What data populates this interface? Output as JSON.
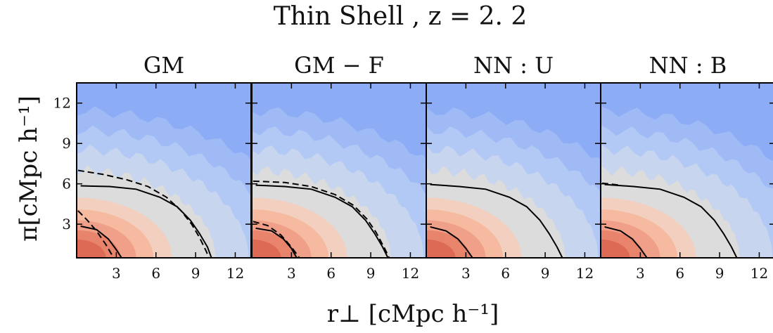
{
  "chart_data": {
    "type": "contour",
    "title": "Thin Shell ,  z = 2. 2",
    "xlabel": "r⊥ [cMpc h⁻¹]",
    "ylabel": "π[cMpc h⁻¹]",
    "xlim": [
      0,
      13.2
    ],
    "ylim": [
      0.5,
      13.5
    ],
    "xticks": [
      3,
      6,
      9,
      12
    ],
    "yticks": [
      3,
      6,
      9,
      12
    ],
    "fill_levels": [
      {
        "r": 2.2,
        "color": "#dc6a54"
      },
      {
        "r": 3.3,
        "color": "#e8846b"
      },
      {
        "r": 4.5,
        "color": "#f0a088"
      },
      {
        "r": 5.8,
        "color": "#f5baa0"
      },
      {
        "r": 7.2,
        "color": "#f2cfbf"
      },
      {
        "r": 10.5,
        "color": "#dcdcdc"
      },
      {
        "r": 13.0,
        "color": "#c7d6ee"
      },
      {
        "r": 15.3,
        "color": "#b3c9f5"
      },
      {
        "r": 17.6,
        "color": "#9fbaf5"
      },
      {
        "r": 20.0,
        "color": "#8cadf5"
      }
    ],
    "panels": [
      {
        "title": "GM",
        "solid_contours": [
          [
            [
              0.3,
              2.85
            ],
            [
              1.5,
              2.6
            ],
            [
              2.4,
              1.9
            ],
            [
              3.0,
              1.1
            ],
            [
              3.4,
              0.5
            ]
          ],
          [
            [
              0.3,
              5.85
            ],
            [
              2.5,
              5.8
            ],
            [
              4.5,
              5.6
            ],
            [
              6.3,
              5.0
            ],
            [
              7.6,
              4.3
            ],
            [
              8.6,
              3.3
            ],
            [
              9.3,
              2.3
            ],
            [
              9.9,
              1.3
            ],
            [
              10.2,
              0.5
            ]
          ]
        ],
        "dashed_contours": [
          [
            [
              0.1,
              4.0
            ],
            [
              0.8,
              3.3
            ],
            [
              1.5,
              2.5
            ],
            [
              2.2,
              1.5
            ],
            [
              2.8,
              0.5
            ]
          ],
          [
            [
              0.1,
              7.0
            ],
            [
              2.0,
              6.7
            ],
            [
              3.8,
              6.3
            ],
            [
              5.4,
              5.8
            ],
            [
              6.8,
              5.0
            ],
            [
              7.9,
              4.0
            ],
            [
              8.7,
              3.0
            ],
            [
              9.3,
              2.0
            ],
            [
              9.8,
              1.0
            ],
            [
              10.0,
              0.5
            ]
          ]
        ]
      },
      {
        "title": "GM − F",
        "solid_contours": [
          [
            [
              0.3,
              2.7
            ],
            [
              1.5,
              2.5
            ],
            [
              2.4,
              1.9
            ],
            [
              3.0,
              1.2
            ],
            [
              3.4,
              0.5
            ]
          ],
          [
            [
              0.3,
              5.9
            ],
            [
              2.5,
              5.8
            ],
            [
              4.5,
              5.6
            ],
            [
              6.3,
              5.0
            ],
            [
              7.6,
              4.3
            ],
            [
              8.6,
              3.3
            ],
            [
              9.3,
              2.3
            ],
            [
              9.9,
              1.3
            ],
            [
              10.3,
              0.5
            ]
          ]
        ],
        "dashed_contours": [
          [
            [
              0.1,
              3.2
            ],
            [
              1.2,
              2.9
            ],
            [
              2.2,
              2.2
            ],
            [
              3.0,
              1.3
            ],
            [
              3.6,
              0.5
            ]
          ],
          [
            [
              0.1,
              6.2
            ],
            [
              2.5,
              6.1
            ],
            [
              4.5,
              5.8
            ],
            [
              6.3,
              5.2
            ],
            [
              7.7,
              4.4
            ],
            [
              8.7,
              3.4
            ],
            [
              9.4,
              2.4
            ],
            [
              10.0,
              1.3
            ],
            [
              10.4,
              0.5
            ]
          ]
        ]
      },
      {
        "title": "NN : U",
        "solid_contours": [
          [
            [
              0.3,
              2.8
            ],
            [
              1.5,
              2.5
            ],
            [
              2.4,
              1.9
            ],
            [
              3.0,
              1.2
            ],
            [
              3.5,
              0.5
            ]
          ],
          [
            [
              0.3,
              5.95
            ],
            [
              2.5,
              5.8
            ],
            [
              4.5,
              5.6
            ],
            [
              6.3,
              5.0
            ],
            [
              7.6,
              4.3
            ],
            [
              8.6,
              3.3
            ],
            [
              9.3,
              2.3
            ],
            [
              9.9,
              1.3
            ],
            [
              10.3,
              0.5
            ]
          ]
        ],
        "dashed_contours": []
      },
      {
        "title": "NN : B",
        "solid_contours": [
          [
            [
              0.3,
              2.8
            ],
            [
              1.5,
              2.5
            ],
            [
              2.4,
              1.9
            ],
            [
              3.0,
              1.2
            ],
            [
              3.5,
              0.5
            ]
          ],
          [
            [
              0.3,
              5.95
            ],
            [
              2.5,
              5.8
            ],
            [
              4.5,
              5.6
            ],
            [
              6.3,
              5.0
            ],
            [
              7.6,
              4.3
            ],
            [
              8.6,
              3.3
            ],
            [
              9.3,
              2.3
            ],
            [
              9.9,
              1.3
            ],
            [
              10.3,
              0.5
            ]
          ]
        ],
        "dashed_contours": [
          [
            [
              0.1,
              6.05
            ],
            [
              1.5,
              5.9
            ]
          ]
        ]
      }
    ]
  }
}
